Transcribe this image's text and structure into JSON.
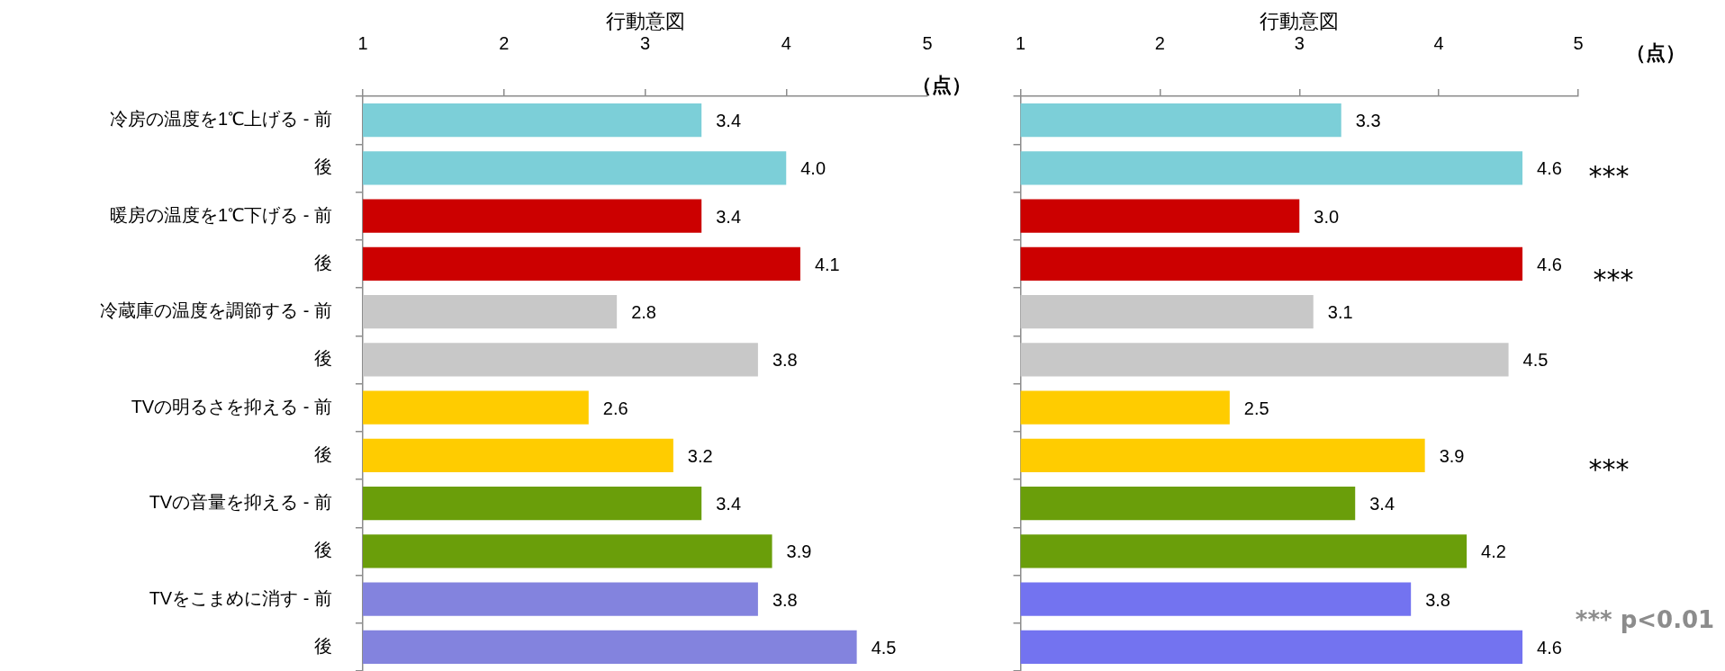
{
  "chart_data": [
    {
      "type": "bar",
      "orientation": "horizontal",
      "xlabel": "行動意図",
      "categories": [
        "冷房の温度を1℃上げる - 前",
        "後",
        "暖房の温度を1℃下げる - 前",
        "後",
        "冷蔵庫の温度を調節する - 前",
        "後",
        "TVの明るさを抑える - 前",
        "後",
        "TVの音量を抑える - 前",
        "後",
        "TVをこまめに消す - 前",
        "後"
      ],
      "values": [
        3.4,
        4.0,
        3.4,
        4.1,
        2.8,
        3.8,
        2.6,
        3.2,
        3.4,
        3.9,
        3.8,
        4.5
      ],
      "value_labels": [
        "3.4",
        "4.0",
        "3.4",
        "4.1",
        "2.8",
        "3.8",
        "2.6",
        "3.2",
        "3.4",
        "3.9",
        "3.8",
        "4.5"
      ],
      "colors": [
        "#7ccfd8",
        "#7ccfd8",
        "#cc0000",
        "#cc0000",
        "#c8c8c8",
        "#c8c8c8",
        "#ffcc00",
        "#ffcc00",
        "#6a9e0a",
        "#6a9e0a",
        "#8383de",
        "#8383de"
      ],
      "xlim": [
        1,
        5
      ],
      "xticks": [
        1,
        2,
        3,
        4,
        5
      ],
      "annotations": [
        "（点）"
      ]
    },
    {
      "type": "bar",
      "orientation": "horizontal",
      "xlabel": "行動意図",
      "categories": [
        null,
        null,
        null,
        null,
        null,
        null,
        null,
        null,
        null,
        null,
        null,
        null
      ],
      "values": [
        3.3,
        4.6,
        3.0,
        4.6,
        3.1,
        4.5,
        2.5,
        3.9,
        3.4,
        4.2,
        3.8,
        4.6
      ],
      "value_labels": [
        "3.3",
        "4.6",
        "3.0",
        "4.6",
        "3.1",
        "4.5",
        "2.5",
        "3.9",
        "3.4",
        "4.2",
        "3.8",
        "4.6"
      ],
      "colors": [
        "#7ccfd8",
        "#7ccfd8",
        "#cc0000",
        "#cc0000",
        "#c8c8c8",
        "#c8c8c8",
        "#ffcc00",
        "#ffcc00",
        "#6a9e0a",
        "#6a9e0a",
        "#7373f0",
        "#7373f0"
      ],
      "xlim": [
        1,
        5
      ],
      "xticks": [
        1,
        2,
        3,
        4,
        5
      ],
      "tick_labels": "x",
      "annotations": [
        "（点）",
        "***",
        "***",
        "***",
        "*** p<0.01"
      ]
    }
  ]
}
